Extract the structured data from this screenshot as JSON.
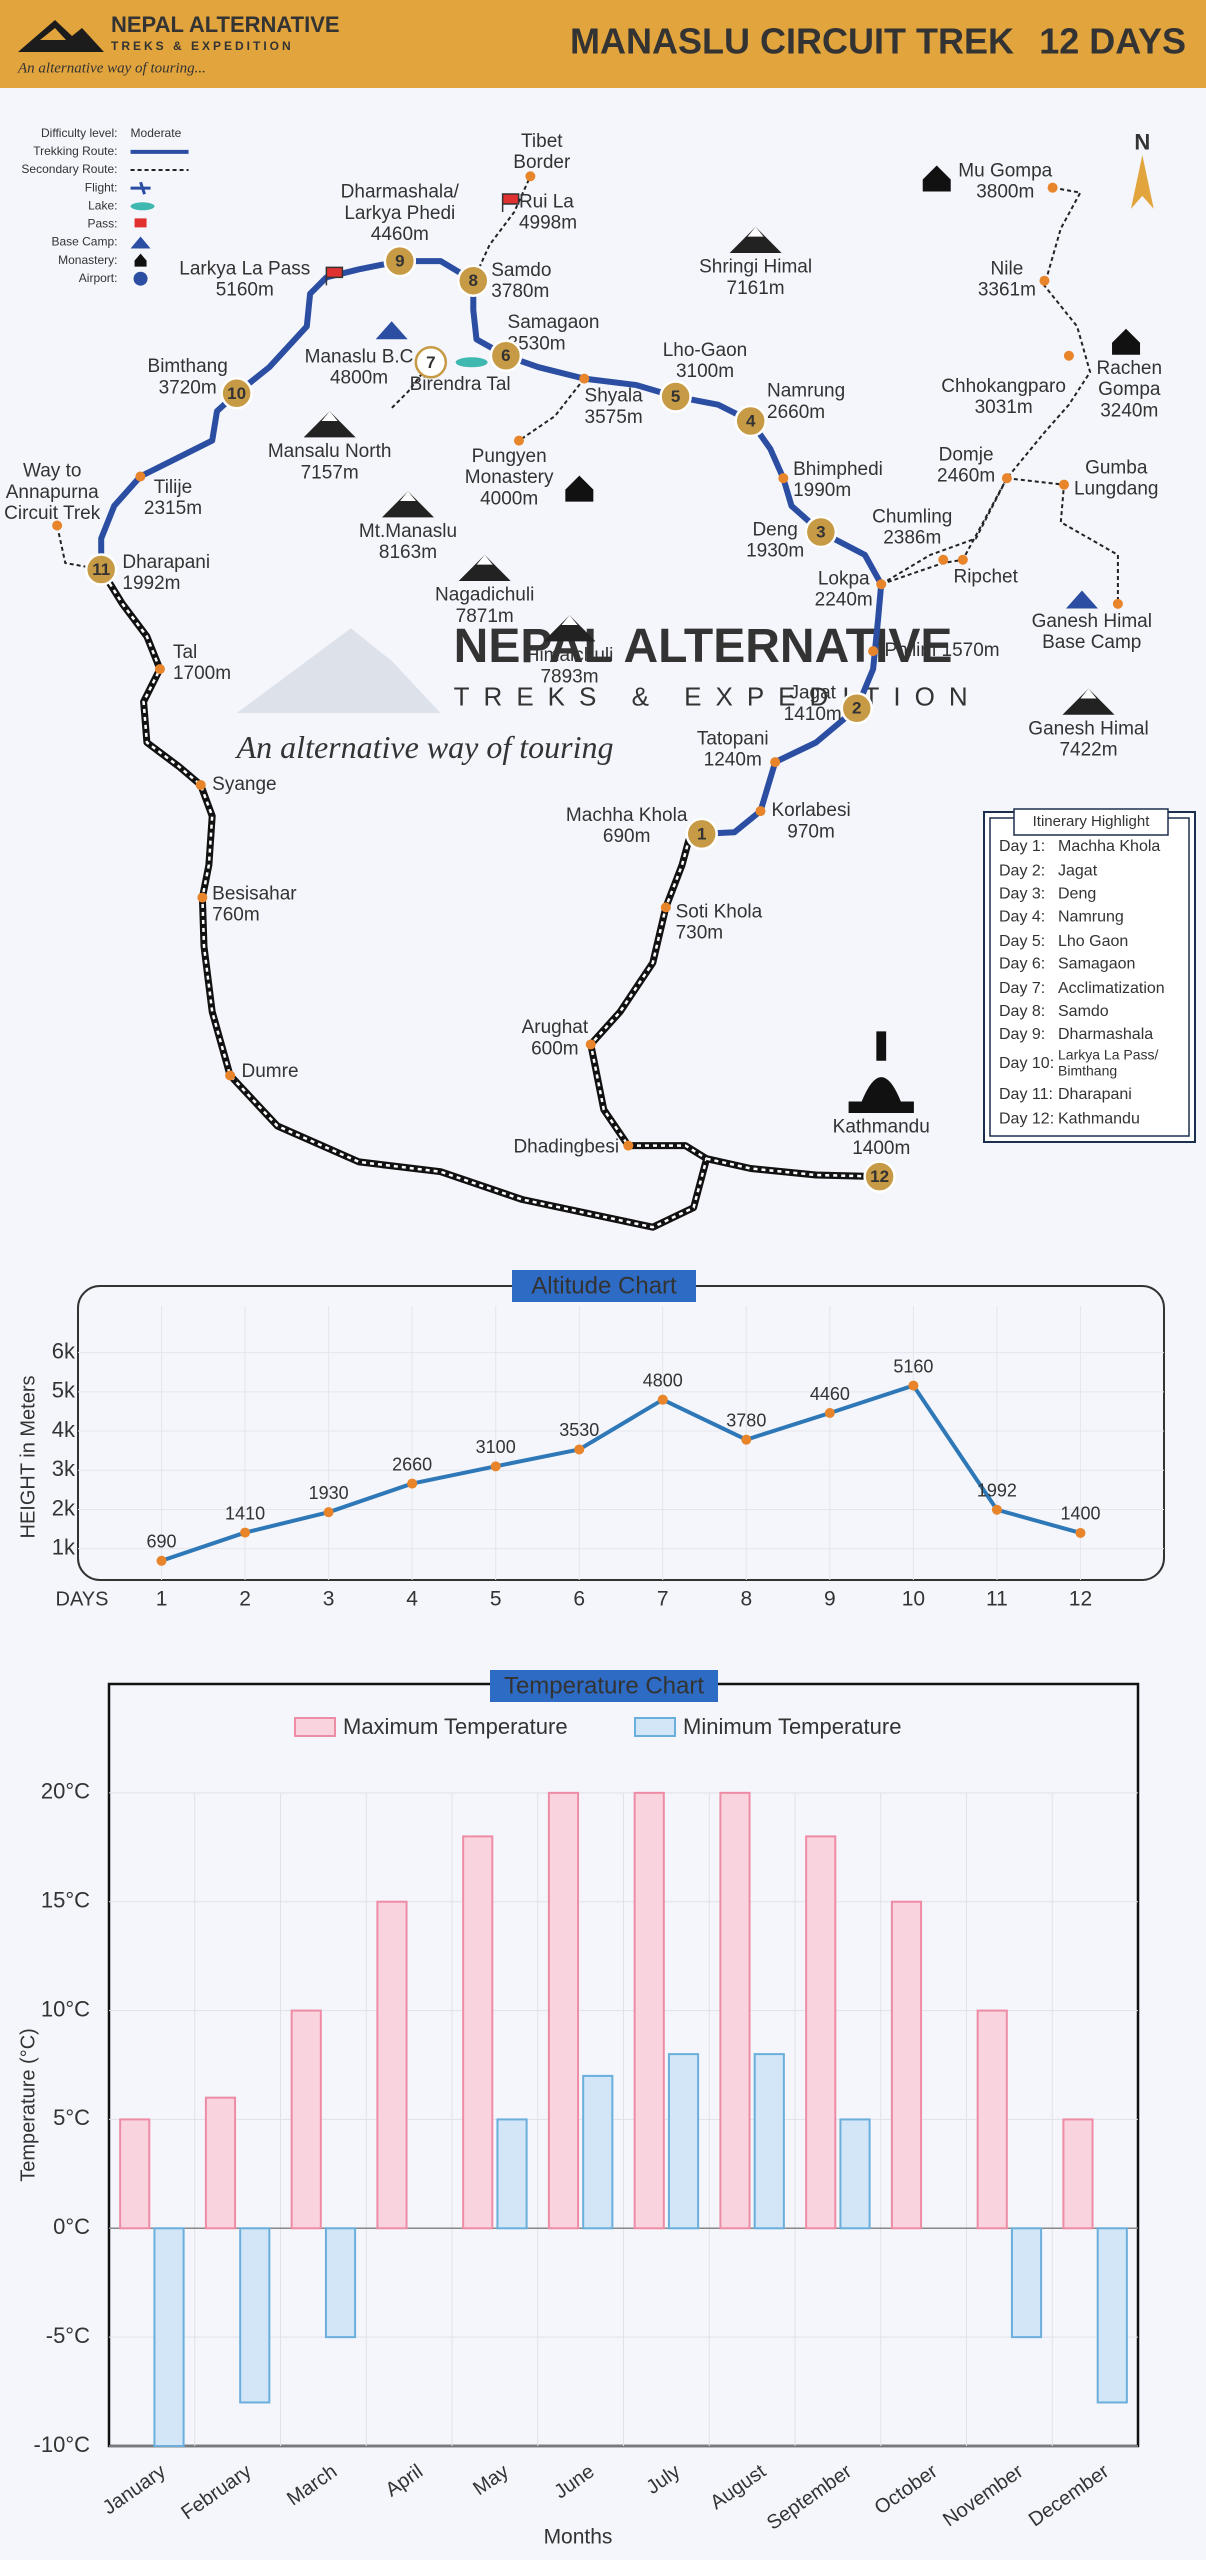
{
  "header": {
    "brand": "NEPAL ALTERNATIVE",
    "brand_sub": "TREKS & EXPEDITION",
    "tagline": "An alternative way of touring...",
    "title": "MANASLU CIRCUIT TREK",
    "days": "12 DAYS"
  },
  "watermark": {
    "brand": "NEPAL ALTERNATIVE",
    "sub": "TREKS & EXPEDITION",
    "tagline": "An alternative way of touring"
  },
  "compass": "N",
  "legend": [
    {
      "label": "Difficulty level:",
      "value": "Moderate"
    },
    {
      "label": "Trekking Route:"
    },
    {
      "label": "Secondary Route:"
    },
    {
      "label": "Flight:"
    },
    {
      "label": "Lake:"
    },
    {
      "label": "Pass:"
    },
    {
      "label": "Base Camp:"
    },
    {
      "label": "Monastery:"
    },
    {
      "label": "Airport:"
    }
  ],
  "map": {
    "places": [
      {
        "lines": [
          "Tibet",
          "Border"
        ]
      },
      {
        "lines": [
          "Rui La",
          "4998m"
        ]
      },
      {
        "lines": [
          "Dharmashala/",
          "Larkya Phedi",
          "4460m"
        ]
      },
      {
        "lines": [
          "Larkya La Pass",
          "5160m"
        ]
      },
      {
        "lines": [
          "Samdo",
          "3780m"
        ]
      },
      {
        "lines": [
          "Samagaon",
          "3530m"
        ]
      },
      {
        "lines": [
          "Manaslu B.C",
          "4800m"
        ]
      },
      {
        "lines": [
          "Birendra Tal"
        ]
      },
      {
        "lines": [
          "Bimthang",
          "3720m"
        ]
      },
      {
        "lines": [
          "Shringi Himal",
          "7161m"
        ]
      },
      {
        "lines": [
          "Lho-Gaon",
          "3100m"
        ]
      },
      {
        "lines": [
          "Shyala",
          "3575m"
        ]
      },
      {
        "lines": [
          "Namrung",
          "2660m"
        ]
      },
      {
        "lines": [
          "Mansalu North",
          "7157m"
        ]
      },
      {
        "lines": [
          "Pungyen",
          "Monastery",
          "4000m"
        ]
      },
      {
        "lines": [
          "Tilije",
          "2315m"
        ]
      },
      {
        "lines": [
          "Way to",
          "Annapurna",
          "Circuit Trek"
        ]
      },
      {
        "lines": [
          "Mt.Manaslu",
          "8163m"
        ]
      },
      {
        "lines": [
          "Bhimphedi",
          "1990m"
        ]
      },
      {
        "lines": [
          "Deng",
          "1930m"
        ]
      },
      {
        "lines": [
          "Dharapani",
          "1992m"
        ]
      },
      {
        "lines": [
          "Nagadichuli",
          "7871m"
        ]
      },
      {
        "lines": [
          "Himalchuli",
          "7893m"
        ]
      },
      {
        "lines": [
          "Lokpa",
          "2240m"
        ]
      },
      {
        "lines": [
          "Chumling",
          "2386m"
        ]
      },
      {
        "lines": [
          "Ripchet"
        ]
      },
      {
        "lines": [
          "Philim 1570m"
        ]
      },
      {
        "lines": [
          "Tal",
          "1700m"
        ]
      },
      {
        "lines": [
          "Jagat",
          "1410m"
        ]
      },
      {
        "lines": [
          "Tatopani",
          "1240m"
        ]
      },
      {
        "lines": [
          "Syange"
        ]
      },
      {
        "lines": [
          "Korlabesi",
          "970m"
        ]
      },
      {
        "lines": [
          "Machha Khola",
          "690m"
        ]
      },
      {
        "lines": [
          "Soti Khola",
          "730m"
        ]
      },
      {
        "lines": [
          "Besisahar",
          "760m"
        ]
      },
      {
        "lines": [
          "Arughat",
          "600m"
        ]
      },
      {
        "lines": [
          "Dumre"
        ]
      },
      {
        "lines": [
          "Dhadingbesi"
        ]
      },
      {
        "lines": [
          "Kathmandu",
          "1400m"
        ]
      },
      {
        "lines": [
          "Mu Gompa",
          "3800m"
        ]
      },
      {
        "lines": [
          "Nile",
          "3361m"
        ]
      },
      {
        "lines": [
          "Rachen",
          "Gompa",
          "3240m"
        ]
      },
      {
        "lines": [
          "Chhokangparo",
          "3031m"
        ]
      },
      {
        "lines": [
          "Domje",
          "2460m"
        ]
      },
      {
        "lines": [
          "Gumba",
          "Lungdang"
        ]
      },
      {
        "lines": [
          "Ganesh Himal",
          "Base Camp"
        ]
      },
      {
        "lines": [
          "Ganesh Himal",
          "7422m"
        ]
      }
    ],
    "stops": [
      "1",
      "2",
      "3",
      "4",
      "5",
      "6",
      "7",
      "8",
      "9",
      "10",
      "11",
      "12"
    ]
  },
  "itinerary": {
    "title": "Itinerary Highlight",
    "days": [
      {
        "day": "Day 1:",
        "place": "Machha Khola"
      },
      {
        "day": "Day 2:",
        "place": "Jagat"
      },
      {
        "day": "Day 3:",
        "place": "Deng"
      },
      {
        "day": "Day 4:",
        "place": "Namrung"
      },
      {
        "day": "Day 5:",
        "place": "Lho Gaon"
      },
      {
        "day": "Day 6:",
        "place": "Samagaon"
      },
      {
        "day": "Day 7:",
        "place": "Acclimatization"
      },
      {
        "day": "Day 8:",
        "place": "Samdo"
      },
      {
        "day": "Day 9:",
        "place": "Dharmashala"
      },
      {
        "day": "Day 10:",
        "place": [
          "Larkya La Pass/",
          "Bimthang"
        ]
      },
      {
        "day": "Day 11:",
        "place": "Dharapani"
      },
      {
        "day": "Day 12:",
        "place": "Kathmandu"
      }
    ]
  },
  "chart_data": [
    {
      "type": "line",
      "title": "Altitude Chart",
      "xlabel": "DAYS",
      "ylabel": "HEIGHT in Meters",
      "x": [
        1,
        2,
        3,
        4,
        5,
        6,
        7,
        8,
        9,
        10,
        11,
        12
      ],
      "values": [
        690,
        1410,
        1930,
        2660,
        3100,
        3530,
        4800,
        3780,
        4460,
        5160,
        1992,
        1400
      ],
      "color": "#2f78b8",
      "marker_color": "#e8842a",
      "xlim": [
        0,
        13
      ],
      "xticks": [
        1,
        2,
        3,
        4,
        5,
        6,
        7,
        8,
        9,
        10,
        11,
        12
      ],
      "ylim": [
        200,
        7700
      ],
      "yticks": [
        {
          "value": 1000,
          "label": "1k"
        },
        {
          "value": 2000,
          "label": "2k"
        },
        {
          "value": 3000,
          "label": "3k"
        },
        {
          "value": 4000,
          "label": "4k"
        },
        {
          "value": 5000,
          "label": "5k"
        },
        {
          "value": 6000,
          "label": "6k"
        }
      ],
      "grid": true
    },
    {
      "type": "bar",
      "title": "Temperature Chart",
      "xlabel": "Months",
      "ylabel": "Temperature (°C)",
      "categories": [
        "January",
        "February",
        "March",
        "April",
        "May",
        "June",
        "July",
        "August",
        "September",
        "October",
        "November",
        "December"
      ],
      "series": [
        {
          "name": "Maximum Temperature",
          "color": "#f9d4de",
          "edge": "#ee8ca6",
          "values": [
            5,
            6,
            10,
            15,
            18,
            20,
            20,
            20,
            18,
            15,
            10,
            5
          ]
        },
        {
          "name": "Minimum Temperature",
          "color": "#d2e6f7",
          "edge": "#6aaedc",
          "values": [
            -10,
            -8,
            -5,
            0,
            5,
            7,
            8,
            8,
            5,
            0,
            -5,
            -8
          ]
        }
      ],
      "ylim": [
        -10,
        25
      ],
      "yticks": [
        {
          "value": -10,
          "label": "-10°C"
        },
        {
          "value": -5,
          "label": "-5°C"
        },
        {
          "value": 0,
          "label": "0°C"
        },
        {
          "value": 5,
          "label": "5°C"
        },
        {
          "value": 10,
          "label": "10°C"
        },
        {
          "value": 15,
          "label": "15°C"
        },
        {
          "value": 20,
          "label": "20°C"
        }
      ],
      "grid": true,
      "legend": "top"
    }
  ]
}
